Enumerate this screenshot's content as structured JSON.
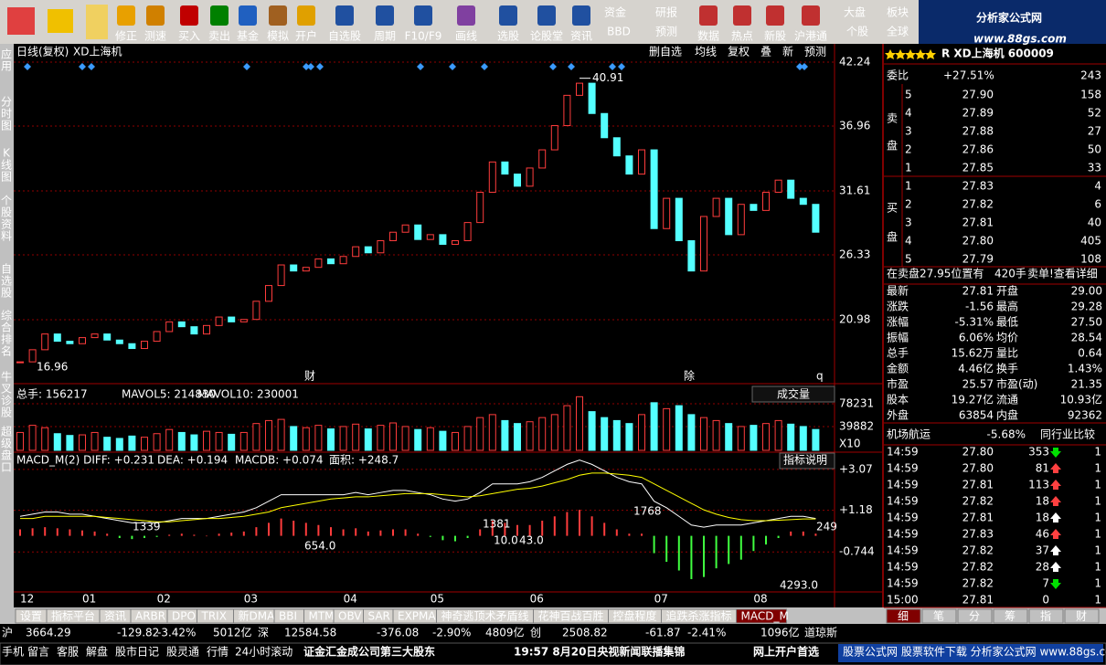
{
  "toolbar": {
    "buttons": [
      "修正",
      "测速",
      "买入",
      "卖出",
      "基金",
      "模拟",
      "开户",
      "自选股",
      "周期",
      "F10/F9",
      "画线",
      "选股",
      "论股堂",
      "资讯",
      "资金",
      "BBD",
      "研报",
      "预测",
      "数据",
      "热点",
      "新股",
      "沪港通",
      "大盘",
      "个股",
      "板块",
      "全球"
    ],
    "logo": "分析家公式网",
    "logo_url": "www.88gs.com"
  },
  "side_tabs": [
    "应用",
    "分时图",
    "K线图",
    "个股资料",
    "自选股",
    "综合排名",
    "牛叉诊股",
    "超级盘口"
  ],
  "chart_data": [
    {
      "type": "candlestick",
      "title": "日线(复权)",
      "subtitle": "XD上海机",
      "tools": [
        "删自选",
        "均线",
        "复权",
        "叠",
        "新",
        "预测"
      ],
      "categories": [
        "12",
        null,
        null,
        null,
        null,
        "01",
        null,
        null,
        null,
        null,
        null,
        "02",
        null,
        null,
        null,
        null,
        null,
        null,
        "03",
        null,
        null,
        null,
        null,
        null,
        null,
        null,
        "04",
        null,
        null,
        null,
        null,
        null,
        null,
        "05",
        null,
        null,
        null,
        null,
        null,
        null,
        null,
        "06",
        null,
        null,
        null,
        null,
        null,
        null,
        null,
        null,
        null,
        "07",
        null,
        null,
        null,
        null,
        null,
        null,
        null,
        "08",
        null,
        null,
        null,
        null,
        null
      ],
      "values": [
        17.5,
        18.5,
        19.8,
        19.2,
        19.0,
        19.5,
        19.8,
        19.3,
        19.0,
        18.6,
        19.2,
        20.0,
        20.8,
        20.4,
        19.8,
        20.5,
        21.2,
        20.8,
        21.0,
        22.5,
        23.8,
        25.5,
        25.0,
        25.3,
        26.0,
        25.6,
        26.2,
        27.0,
        26.5,
        27.5,
        28.2,
        28.8,
        27.6,
        28.0,
        27.2,
        27.5,
        29.0,
        31.5,
        34.0,
        33.0,
        32.0,
        33.5,
        35.0,
        37.0,
        39.5,
        40.5,
        38.0,
        36.0,
        34.5,
        33.0,
        35.0,
        28.5,
        31.0,
        27.5,
        25.0,
        29.5,
        31.0,
        28.0,
        30.5,
        30.0,
        31.5,
        32.5,
        31.0,
        30.5,
        28.2
      ],
      "ylim": [
        15.7,
        43.75
      ],
      "yticks": [
        20.98,
        26.33,
        31.61,
        36.96,
        42.24
      ],
      "grid": true,
      "annotations": [
        "40.91",
        "16.96",
        "财",
        "除",
        "q"
      ],
      "colors": {
        "up": "#ff3c3c",
        "down": "#54ffff"
      }
    },
    {
      "type": "bar",
      "title": "成交量",
      "header_items": [
        "总手: 156217",
        "MAVOL5: 214830",
        "MAVOL10: 230001"
      ],
      "scale_note": "X10",
      "values": [
        30000,
        42000,
        38000,
        28000,
        25000,
        26000,
        30000,
        22000,
        20000,
        24000,
        22000,
        28000,
        35000,
        30000,
        26000,
        32000,
        30000,
        27000,
        30000,
        45000,
        50000,
        52000,
        40000,
        38000,
        42000,
        36000,
        40000,
        44000,
        36000,
        42000,
        46000,
        40000,
        35000,
        38000,
        32000,
        30000,
        40000,
        55000,
        60000,
        50000,
        45000,
        48000,
        55000,
        60000,
        75000,
        90000,
        65000,
        55000,
        50000,
        45000,
        60000,
        80000,
        70000,
        75000,
        60000,
        55000,
        50000,
        45000,
        40000,
        42000,
        45000,
        50000,
        44000,
        40000,
        35000
      ],
      "ylim": [
        0,
        108900
      ],
      "yticks": [
        39882,
        78231
      ]
    },
    {
      "type": "bar",
      "title": "指标说明",
      "header_items": [
        "MACD_M(2) DIFF: +0.231",
        "DEA: +0.194",
        "MACDB: +0.074",
        "面积: +248.7"
      ],
      "values": [
        0.3,
        0.35,
        0.4,
        0.35,
        0.3,
        0.25,
        0.2,
        0.1,
        -0.1,
        -0.15,
        -0.1,
        -0.05,
        0.05,
        0.1,
        0.05,
        0.0,
        0.1,
        0.15,
        0.2,
        0.4,
        0.6,
        0.8,
        0.7,
        0.6,
        0.5,
        0.4,
        0.3,
        0.35,
        0.2,
        0.25,
        0.3,
        0.3,
        0.1,
        -0.05,
        -0.2,
        -0.25,
        -0.1,
        0.3,
        0.7,
        0.6,
        0.5,
        0.5,
        0.7,
        0.9,
        1.1,
        1.2,
        0.9,
        0.6,
        0.3,
        0.1,
        0.1,
        -0.8,
        -1.2,
        -1.6,
        -2.0,
        -1.9,
        -1.5,
        -1.3,
        -1.1,
        -0.7,
        -0.4,
        -0.1,
        0.2,
        0.2,
        0.1
      ],
      "series": [
        {
          "color": "#ffffff",
          "values": [
            0.9,
            1.0,
            1.1,
            1.1,
            1.0,
            1.0,
            0.9,
            0.8,
            0.7,
            0.6,
            0.6,
            0.6,
            0.7,
            0.8,
            0.8,
            0.8,
            0.9,
            1.0,
            1.1,
            1.3,
            1.6,
            1.9,
            1.9,
            1.9,
            1.9,
            1.9,
            1.9,
            2.0,
            1.9,
            2.0,
            2.1,
            2.1,
            2.0,
            1.9,
            1.7,
            1.6,
            1.7,
            2.0,
            2.4,
            2.4,
            2.4,
            2.5,
            2.7,
            3.0,
            3.3,
            3.5,
            3.3,
            3.0,
            2.7,
            2.5,
            2.4,
            1.6,
            1.3,
            0.9,
            0.5,
            0.4,
            0.5,
            0.5,
            0.5,
            0.6,
            0.7,
            0.8,
            0.9,
            0.9,
            0.8
          ]
        },
        {
          "color": "#ffff00",
          "values": [
            0.8,
            0.8,
            0.9,
            0.9,
            0.9,
            0.9,
            0.9,
            0.85,
            0.8,
            0.75,
            0.7,
            0.65,
            0.65,
            0.7,
            0.75,
            0.8,
            0.8,
            0.85,
            0.9,
            1.0,
            1.1,
            1.3,
            1.4,
            1.5,
            1.6,
            1.7,
            1.75,
            1.8,
            1.8,
            1.85,
            1.9,
            1.95,
            1.95,
            1.95,
            1.9,
            1.85,
            1.8,
            1.85,
            1.95,
            2.05,
            2.15,
            2.2,
            2.3,
            2.45,
            2.6,
            2.8,
            2.9,
            2.9,
            2.85,
            2.8,
            2.7,
            2.4,
            2.1,
            1.8,
            1.5,
            1.2,
            1.0,
            0.85,
            0.75,
            0.7,
            0.7,
            0.72,
            0.75,
            0.78,
            0.78
          ]
        }
      ],
      "ylim": [
        -2.59,
        3.78
      ],
      "yticks": [
        -0.744,
        {
          "value": 1.18,
          "label": "+1.18"
        },
        {
          "value": 3.07,
          "label": "+3.07"
        }
      ],
      "annotations": [
        "1339",
        "654.0",
        "1381",
        "10.0",
        "43.0",
        "1768",
        "4293.0",
        "249"
      ],
      "colors": {
        "up": "#ff3c3c",
        "down": "#40ff40"
      }
    }
  ],
  "quote": {
    "title": "R XD上海机 600009",
    "weibi": [
      "委比",
      "+27.51%",
      "243"
    ],
    "sell_label": [
      "卖",
      "盘"
    ],
    "buy_label": [
      "买",
      "盘"
    ],
    "sell": [
      [
        "5",
        "27.90",
        "158"
      ],
      [
        "4",
        "27.89",
        "52"
      ],
      [
        "3",
        "27.88",
        "27"
      ],
      [
        "2",
        "27.86",
        "50"
      ],
      [
        "1",
        "27.85",
        "33"
      ]
    ],
    "buy": [
      [
        "1",
        "27.83",
        "4"
      ],
      [
        "2",
        "27.82",
        "6"
      ],
      [
        "3",
        "27.81",
        "40"
      ],
      [
        "4",
        "27.80",
        "405"
      ],
      [
        "5",
        "27.79",
        "108"
      ]
    ],
    "notice": [
      "在卖盘27.95位置有",
      "420手",
      "卖单!查看详细"
    ],
    "stats": [
      [
        "最新",
        "27.81",
        "开盘",
        "29.00"
      ],
      [
        "涨跌",
        "-1.56",
        "最高",
        "29.28"
      ],
      [
        "涨幅",
        "-5.31%",
        "最低",
        "27.50"
      ],
      [
        "振幅",
        "6.06%",
        "均价",
        "28.54"
      ],
      [
        "总手",
        "15.62万",
        "量比",
        "0.64"
      ],
      [
        "金额",
        "4.46亿",
        "换手",
        "1.43%"
      ],
      [
        "市盈",
        "25.57",
        "市盈(动)",
        "21.35"
      ],
      [
        "股本",
        "19.27亿",
        "流通",
        "10.93亿"
      ],
      [
        "外盘",
        "63854",
        "内盘",
        "92362"
      ]
    ],
    "industry": [
      "机场航运",
      "-5.68%",
      "同行业比较"
    ],
    "trades": [
      [
        "14:59",
        "27.80",
        "353",
        "1"
      ],
      [
        "14:59",
        "27.80",
        "81",
        "1"
      ],
      [
        "14:59",
        "27.81",
        "113",
        "1"
      ],
      [
        "14:59",
        "27.82",
        "18",
        "1"
      ],
      [
        "14:59",
        "27.81",
        "18",
        "1"
      ],
      [
        "14:59",
        "27.83",
        "46",
        "1"
      ],
      [
        "14:59",
        "27.82",
        "37",
        "1"
      ],
      [
        "14:59",
        "27.82",
        "28",
        "1"
      ],
      [
        "14:59",
        "27.82",
        "7",
        "1"
      ],
      [
        "15:00",
        "27.81",
        "0",
        "1"
      ]
    ],
    "trade_dirs": [
      "down",
      "up",
      "up",
      "up",
      "up-w",
      "up",
      "up-w",
      "up-w",
      "down",
      "none"
    ],
    "tabs": [
      "细",
      "笔",
      "分",
      "筹",
      "指",
      "财"
    ]
  },
  "indicator_tabs": [
    "设置",
    "指标平台",
    "资讯",
    "ARBR",
    "DPO",
    "TRIX",
    "新DMA",
    "BBI",
    "MTM",
    "OBV",
    "SAR",
    "EXPMA",
    "神奇逃顶术矛盾线",
    "花神百战百胜",
    "控盘程度",
    "追跌杀涨指标",
    "MACD_M"
  ],
  "index_bar": [
    [
      "沪",
      "3664.29",
      "-129.82",
      "-3.42%",
      "5012亿"
    ],
    [
      "深",
      "12584.58",
      "-376.08",
      "-2.90%",
      "4809亿"
    ],
    [
      "创",
      "2508.82",
      "-61.87",
      "-2.41%",
      "1096亿"
    ],
    [
      "道琼斯"
    ]
  ],
  "status_bar": [
    "手机",
    "留言",
    "客服",
    "解盘",
    "股市日记",
    "股灵通",
    "行情",
    "24小时滚动",
    "证金汇金成公司第三大股东",
    "19:57 8月20日央视新闻联播集锦",
    "网上开户首选",
    "股票公式网 股票软件下载 分析家公式网 www.88gs.com"
  ]
}
